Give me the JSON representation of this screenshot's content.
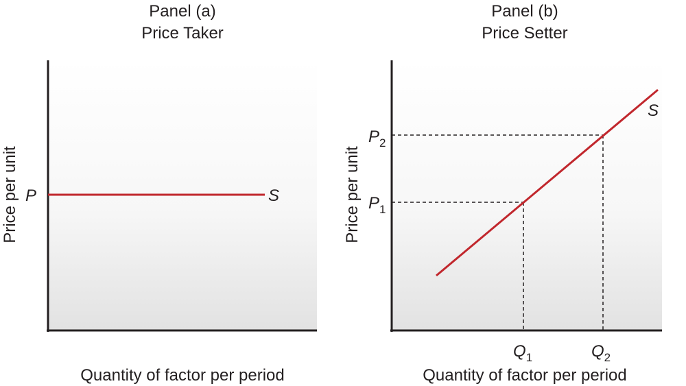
{
  "colors": {
    "axis": "#231f20",
    "supply_curve": "#c1272d",
    "plot_bg_top": "#ffffff",
    "plot_bg_bottom": "#e4e4e4",
    "guide": "#231f20"
  },
  "panel_a": {
    "title_line1": "Panel (a)",
    "title_line2": "Price Taker",
    "ylabel": "Price per unit",
    "xlabel": "Quantity of factor per period",
    "price_label": "P",
    "curve_label": "S"
  },
  "panel_b": {
    "title_line1": "Panel (b)",
    "title_line2": "Price Setter",
    "ylabel": "Price per unit",
    "xlabel": "Quantity of factor per period",
    "p1_main": "P",
    "p1_sub": "1",
    "p2_main": "P",
    "p2_sub": "2",
    "q1_main": "Q",
    "q1_sub": "1",
    "q2_main": "Q",
    "q2_sub": "2",
    "curve_label": "S"
  }
}
